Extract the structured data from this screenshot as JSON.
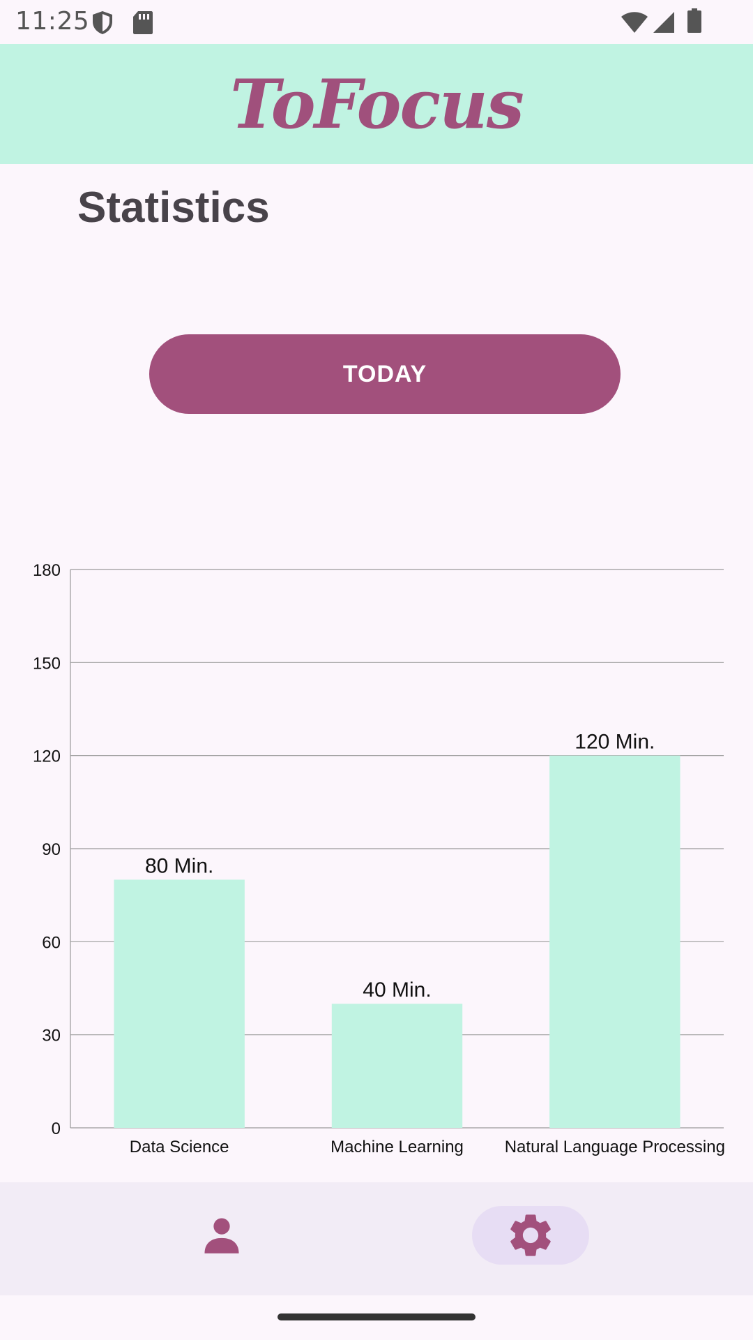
{
  "status_bar": {
    "time": "11:25",
    "icons": [
      "shield-icon",
      "sd-card-icon",
      "wifi-icon",
      "signal-icon",
      "battery-icon"
    ]
  },
  "app_bar": {
    "title": "ToFocus",
    "background": "#C0F3E2",
    "title_color": "#A0507C"
  },
  "page": {
    "title": "Statistics"
  },
  "filter": {
    "button_label": "TODAY",
    "button_color": "#A2507C"
  },
  "chart_data": {
    "type": "bar",
    "categories": [
      "Data Science",
      "Machine Learning",
      "Natural Language Processing"
    ],
    "values": [
      80,
      40,
      120
    ],
    "value_labels": [
      "80 Min.",
      "40 Min.",
      "120 Min."
    ],
    "yticks": [
      0,
      30,
      60,
      90,
      120,
      150,
      180
    ],
    "ylim": [
      0,
      180
    ],
    "grid": true,
    "bar_color": "#C0F3E2",
    "title": "",
    "xlabel": "",
    "ylabel": ""
  },
  "bottom_nav": {
    "items": [
      {
        "icon": "person-icon",
        "selected": false
      },
      {
        "icon": "gear-icon",
        "selected": true
      }
    ],
    "icon_color": "#A2507C",
    "selected_pill_color": "#E7DDF4"
  }
}
